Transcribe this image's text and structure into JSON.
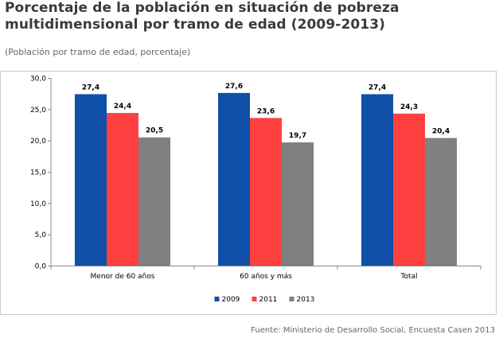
{
  "chart_data": {
    "type": "bar",
    "title": "Porcentaje de la población en situación de pobreza multidimensional por tramo de edad (2009-2013)",
    "subtitle": "(Población por tramo de edad, porcentaje)",
    "categories": [
      "Menor de 60 años",
      "60 años y más",
      "Total"
    ],
    "series": [
      {
        "name": "2009",
        "values": [
          27.4,
          27.6,
          27.4
        ],
        "labels": [
          "27,4",
          "27,6",
          "27,4"
        ],
        "color": "#0f4fa8"
      },
      {
        "name": "2011",
        "values": [
          24.4,
          23.6,
          24.3
        ],
        "labels": [
          "24,4",
          "23,6",
          "24,3"
        ],
        "color": "#ff4040"
      },
      {
        "name": "2013",
        "values": [
          20.5,
          19.7,
          20.4
        ],
        "labels": [
          "20,5",
          "19,7",
          "20,4"
        ],
        "color": "#808080"
      }
    ],
    "ylim": [
      0,
      30
    ],
    "yticks": [
      0,
      5,
      10,
      15,
      20,
      25,
      30
    ],
    "ytick_labels": [
      "0,0",
      "5,0",
      "10,0",
      "15,0",
      "20,0",
      "25,0",
      "30,0"
    ],
    "xlabel": "",
    "ylabel": "",
    "grid": false,
    "legend_position": "bottom-center",
    "source": "Fuente: Ministerio de Desarrollo Social, Encuesta Casen 2013"
  }
}
